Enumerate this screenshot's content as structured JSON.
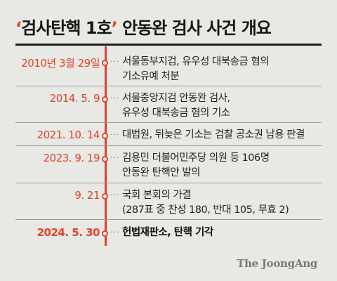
{
  "title": {
    "quote_open": "‘",
    "main": "검사탄핵 1호",
    "quote_close": "’",
    "rest": " 안동완 검사 사건 개요"
  },
  "timeline": [
    {
      "date": "2010년 3월 29일",
      "lines": [
        "서울동부지검, 유우성 대북송금 혐의",
        "기소유예 처분"
      ],
      "bold": false
    },
    {
      "date": "2014. 5. 9",
      "lines": [
        "서울중앙지검 안동완 검사,",
        "유우성 대북송금 혐의 기소"
      ],
      "bold": false
    },
    {
      "date": "2021. 10. 14",
      "lines": [
        "대법원, 뒤늦은 기소는 검찰 공소권 남용 판결"
      ],
      "bold": false
    },
    {
      "date": "2023. 9. 19",
      "lines": [
        "김용민 더불어민주당 의원 등 106명",
        "안동완 탄핵안 발의"
      ],
      "bold": false
    },
    {
      "date": "9. 21",
      "lines": [
        "국회 본회의 가결",
        "(287표 중 찬성 180, 반대 105, 무효 2)"
      ],
      "bold": false
    },
    {
      "date": "2024. 5. 30",
      "lines": [
        "헌법재판소, 탄핵 기각"
      ],
      "bold": true
    }
  ],
  "brand": "The JoongAng",
  "colors": {
    "accent": "#e0412b",
    "background": "#e8e9e4",
    "text": "#1f1f1f"
  }
}
